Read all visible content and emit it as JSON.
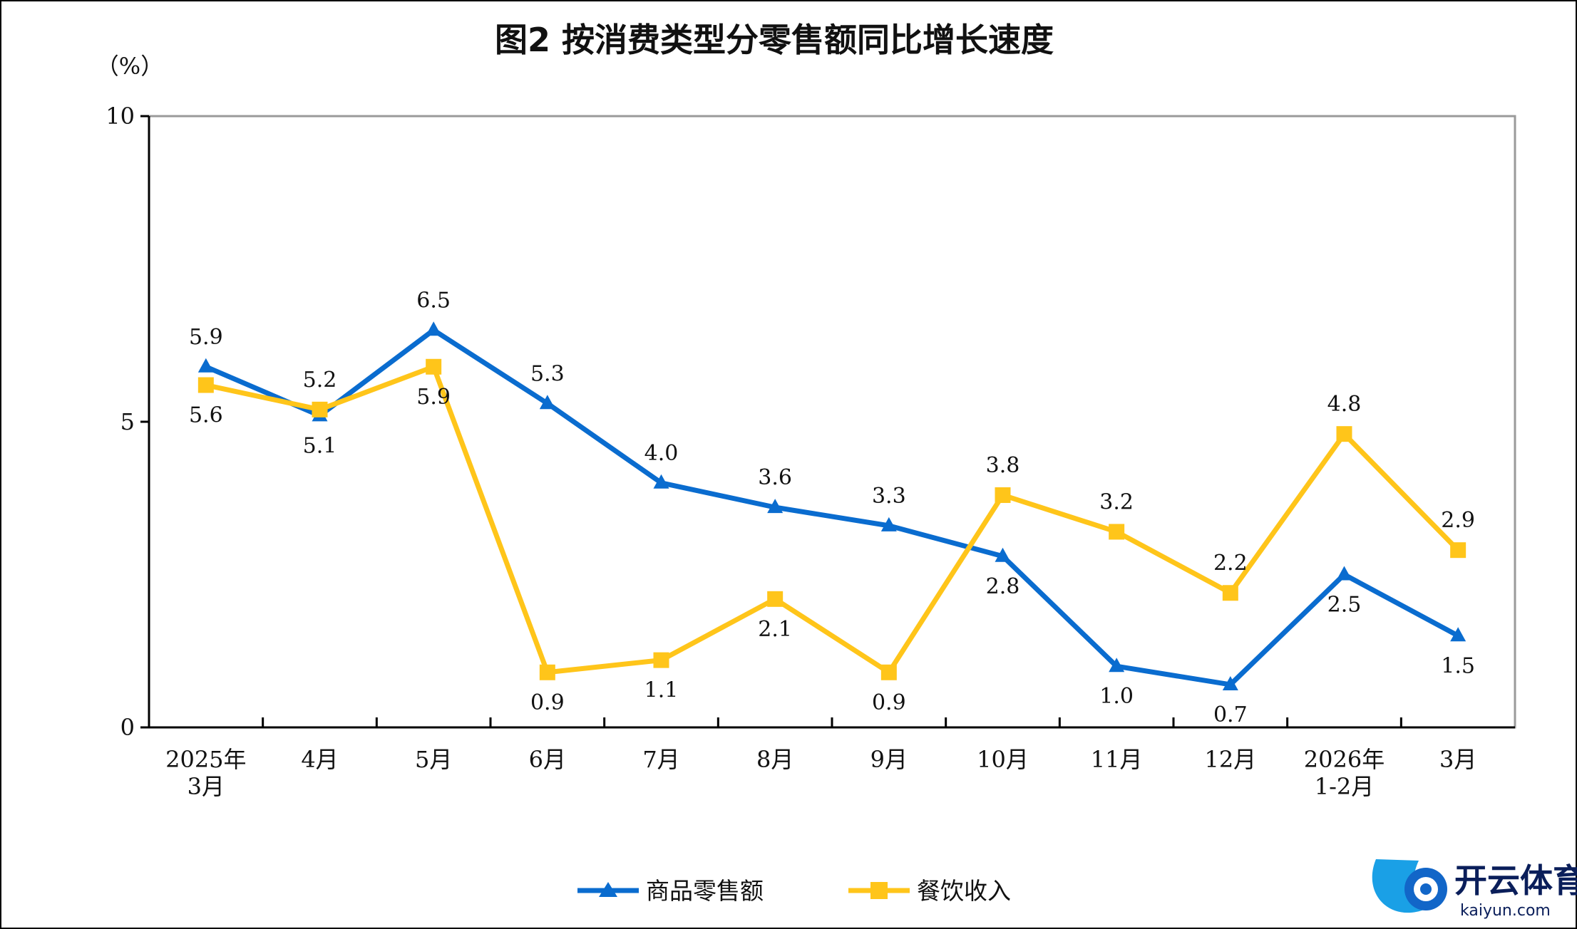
{
  "chart_data": {
    "type": "line",
    "title": "图2  按消费类型分零售额同比增长速度",
    "ylabel": "（%）",
    "xlabel": "",
    "ylim": [
      0,
      10
    ],
    "yticks": [
      0,
      5,
      10
    ],
    "categories": [
      [
        "2025年",
        "3月"
      ],
      [
        "4月"
      ],
      [
        "5月"
      ],
      [
        "6月"
      ],
      [
        "7月"
      ],
      [
        "8月"
      ],
      [
        "9月"
      ],
      [
        "10月"
      ],
      [
        "11月"
      ],
      [
        "12月"
      ],
      [
        "2026年",
        "1-2月"
      ],
      [
        "3月"
      ]
    ],
    "series": [
      {
        "name": "商品零售额",
        "color": "#0a6ccf",
        "marker": "triangle",
        "values": [
          5.9,
          5.1,
          6.5,
          5.3,
          4.0,
          3.6,
          3.3,
          2.8,
          1.0,
          0.7,
          2.5,
          1.5
        ]
      },
      {
        "name": "餐饮收入",
        "color": "#ffc51a",
        "marker": "square",
        "values": [
          5.6,
          5.2,
          5.9,
          0.9,
          1.1,
          2.1,
          0.9,
          3.8,
          3.2,
          2.2,
          4.8,
          2.9
        ]
      }
    ],
    "legend_position": "bottom-center",
    "grid": false
  },
  "watermark": {
    "brand": "开云体育",
    "site": "kaiyun.com"
  }
}
